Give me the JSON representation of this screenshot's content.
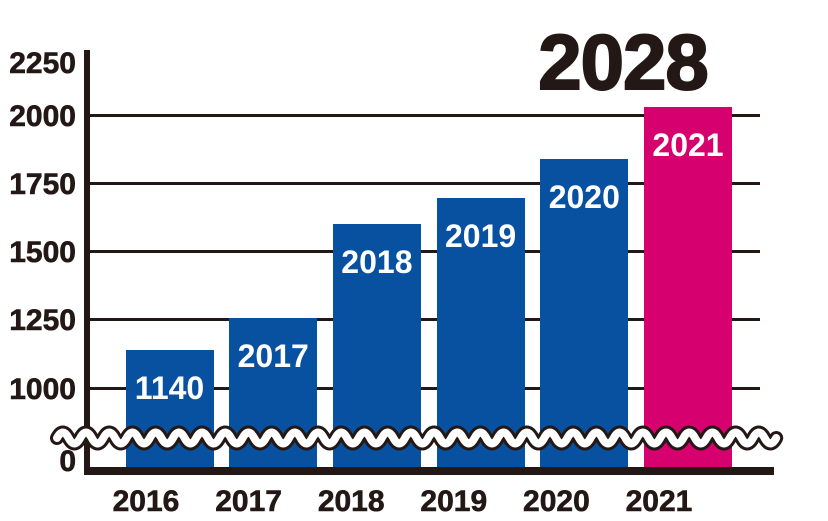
{
  "chart_data": {
    "type": "bar",
    "title": "2028",
    "categories": [
      "2016",
      "2017",
      "2018",
      "2019",
      "2020",
      "2021"
    ],
    "values": [
      1140,
      1255,
      1600,
      1695,
      1840,
      2028
    ],
    "values_note": "1140 (first bar) and 2028 (headline over last bar) are printed on the chart; intermediate values estimated from gridlines",
    "bar_labels": [
      "1140",
      "2017",
      "2018",
      "2019",
      "2020",
      "2021"
    ],
    "highlight_index": 5,
    "y_ticks": [
      2250,
      2000,
      1750,
      1500,
      1250,
      1000,
      0
    ],
    "y_axis_break": true,
    "y_axis_break_between": [
      0,
      1000
    ],
    "grid": "horizontal",
    "legend_position": "none",
    "xlabel": "",
    "ylabel": "",
    "colors": {
      "bar": "#0851a1",
      "bar_highlight": "#d6006e",
      "ink": "#231815",
      "bar_label_text": "#ffffff",
      "background": "#ffffff"
    }
  }
}
